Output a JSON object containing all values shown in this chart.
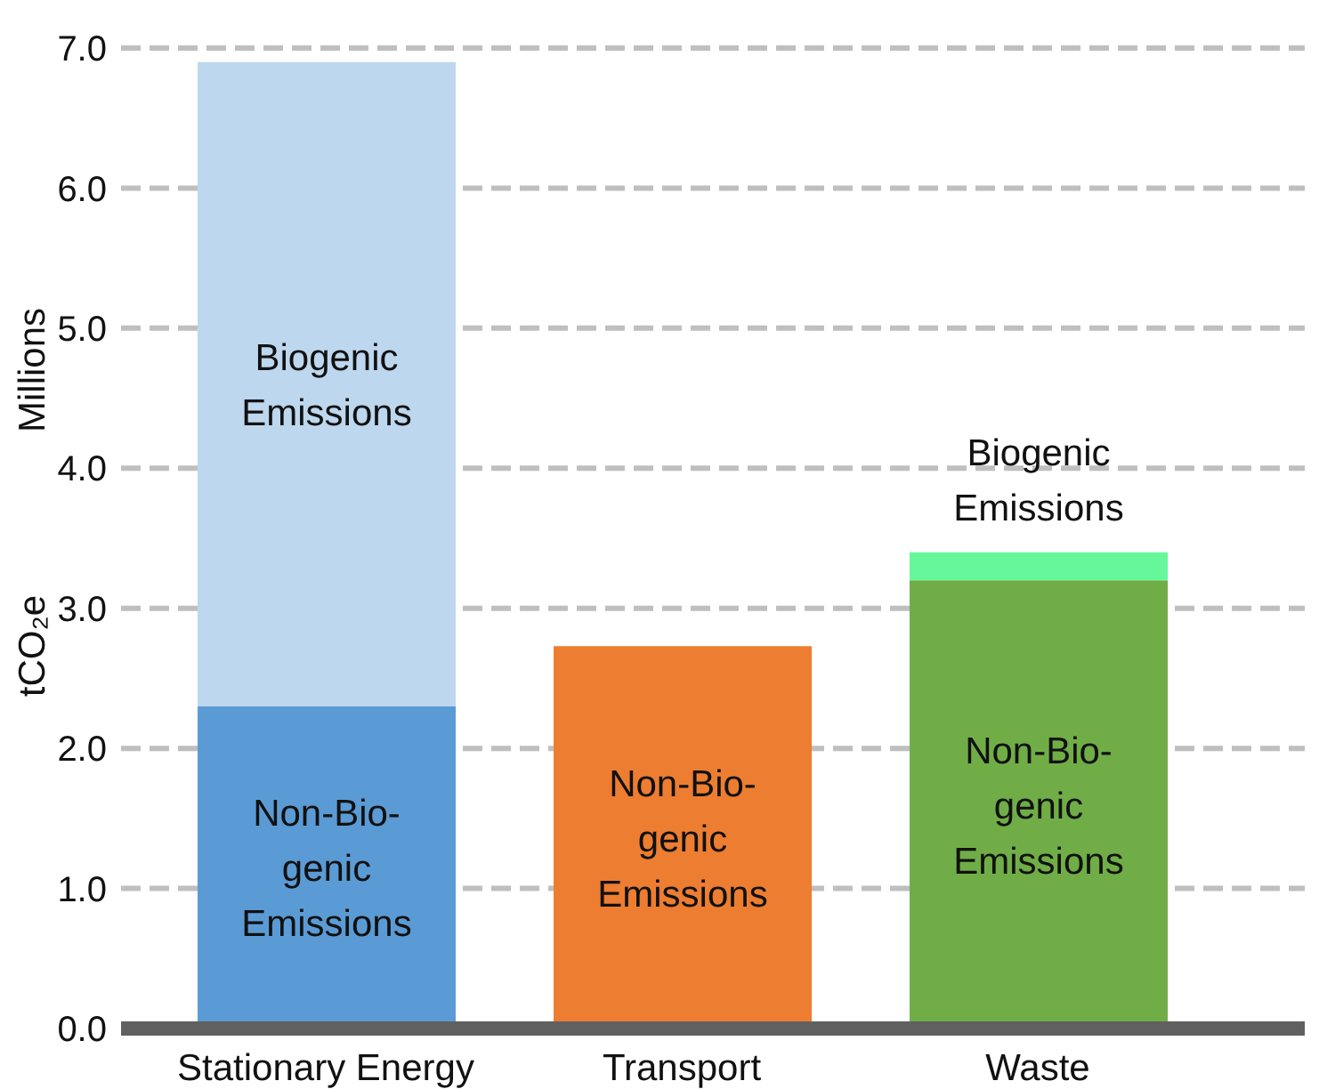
{
  "chart_data": {
    "type": "bar",
    "stacked": true,
    "ylabel": "tCO₂e",
    "annotations": [
      "Millions"
    ],
    "categories": [
      "Stationary Energy",
      "Transport",
      "Waste"
    ],
    "series": [
      {
        "name": "Non-Bio-genic Emissions",
        "colors": [
          "#5b9bd5",
          "#ed7d31",
          "#70ad47"
        ],
        "values": [
          2.3,
          2.73,
          3.2
        ]
      },
      {
        "name": "Biogenic Emissions",
        "colors": [
          "#bdd7ee",
          "#bdd7ee",
          "#66f79b"
        ],
        "values": [
          4.6,
          null,
          0.2
        ]
      }
    ],
    "ylim": [
      0,
      7
    ],
    "yticks": [
      {
        "value": 0,
        "label": "0.0"
      },
      {
        "value": 1,
        "label": "1.0"
      },
      {
        "value": 2,
        "label": "2.0"
      },
      {
        "value": 3,
        "label": "3.0"
      },
      {
        "value": 4,
        "label": "4.0"
      },
      {
        "value": 5,
        "label": "5.0"
      },
      {
        "value": 6,
        "label": "6.0"
      },
      {
        "value": 7,
        "label": "7.0"
      }
    ],
    "grid": "y",
    "legend": false
  }
}
